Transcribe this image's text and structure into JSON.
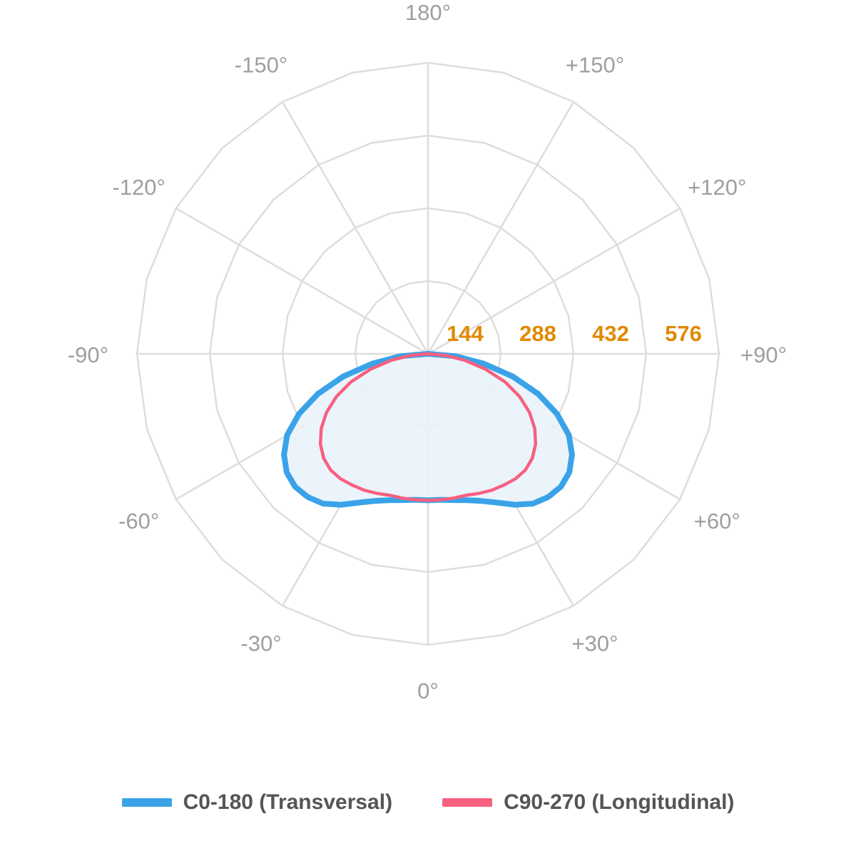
{
  "chart_data": {
    "type": "polar",
    "angle_labels": [
      "180°",
      "+150°",
      "+120°",
      "+90°",
      "+60°",
      "+30°",
      "0°",
      "-30°",
      "-60°",
      "-90°",
      "-120°",
      "-150°"
    ],
    "angle_label_angles": [
      180,
      150,
      120,
      90,
      60,
      30,
      0,
      -30,
      -60,
      -90,
      -120,
      -150
    ],
    "radial_ticks": [
      144,
      288,
      432,
      576
    ],
    "radial_max": 576,
    "grid": true,
    "legend_position": "bottom",
    "series": [
      {
        "name": "C0-180 (Transversal)",
        "color": "#3aa3e8",
        "fill": "#eaf3fb",
        "angles": [
          0,
          5,
          10,
          15,
          20,
          25,
          30,
          35,
          40,
          45,
          50,
          55,
          60,
          65,
          70,
          75,
          80,
          85,
          90
        ],
        "values": [
          290,
          290,
          294,
          300,
          310,
          325,
          345,
          362,
          370,
          372,
          365,
          348,
          322,
          282,
          232,
          174,
          112,
          54,
          0
        ]
      },
      {
        "name": "C90-270 (Longitudinal)",
        "color": "#f7607f",
        "angles": [
          0,
          5,
          10,
          15,
          20,
          25,
          30,
          35,
          40,
          45,
          50,
          55,
          60,
          65,
          70,
          75,
          80,
          85,
          90
        ],
        "values": [
          290,
          290,
          290,
          290,
          294,
          298,
          300,
          302,
          300,
          292,
          278,
          258,
          232,
          200,
          162,
          118,
          74,
          34,
          0
        ]
      }
    ]
  }
}
